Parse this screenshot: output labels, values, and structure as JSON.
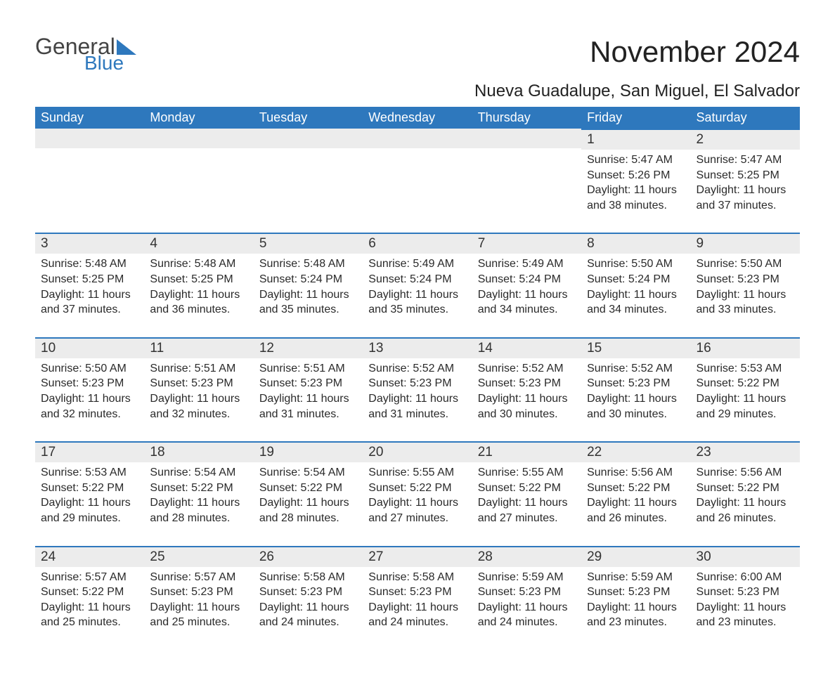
{
  "logo": {
    "word1": "General",
    "word2": "Blue"
  },
  "title": "November 2024",
  "location": "Nueva Guadalupe, San Miguel, El Salvador",
  "day_headers": [
    "Sunday",
    "Monday",
    "Tuesday",
    "Wednesday",
    "Thursday",
    "Friday",
    "Saturday"
  ],
  "colors": {
    "header_bg": "#2e78bd",
    "header_text": "#ffffff",
    "daynum_bg": "#ececec",
    "row_border": "#2e78bd",
    "body_text": "#2a2a2a",
    "logo_accent": "#2e78bd",
    "logo_text": "#444444",
    "page_bg": "#ffffff"
  },
  "fonts": {
    "title_size_pt": 32,
    "location_size_pt": 18,
    "header_size_pt": 14,
    "daynum_size_pt": 14,
    "body_size_pt": 12,
    "family": "Arial"
  },
  "layout": {
    "columns": 7,
    "rows": 5,
    "first_day_column_index": 5
  },
  "weeks": [
    [
      null,
      null,
      null,
      null,
      null,
      {
        "n": "1",
        "sunrise": "Sunrise: 5:47 AM",
        "sunset": "Sunset: 5:26 PM",
        "daylight": "Daylight: 11 hours and 38 minutes."
      },
      {
        "n": "2",
        "sunrise": "Sunrise: 5:47 AM",
        "sunset": "Sunset: 5:25 PM",
        "daylight": "Daylight: 11 hours and 37 minutes."
      }
    ],
    [
      {
        "n": "3",
        "sunrise": "Sunrise: 5:48 AM",
        "sunset": "Sunset: 5:25 PM",
        "daylight": "Daylight: 11 hours and 37 minutes."
      },
      {
        "n": "4",
        "sunrise": "Sunrise: 5:48 AM",
        "sunset": "Sunset: 5:25 PM",
        "daylight": "Daylight: 11 hours and 36 minutes."
      },
      {
        "n": "5",
        "sunrise": "Sunrise: 5:48 AM",
        "sunset": "Sunset: 5:24 PM",
        "daylight": "Daylight: 11 hours and 35 minutes."
      },
      {
        "n": "6",
        "sunrise": "Sunrise: 5:49 AM",
        "sunset": "Sunset: 5:24 PM",
        "daylight": "Daylight: 11 hours and 35 minutes."
      },
      {
        "n": "7",
        "sunrise": "Sunrise: 5:49 AM",
        "sunset": "Sunset: 5:24 PM",
        "daylight": "Daylight: 11 hours and 34 minutes."
      },
      {
        "n": "8",
        "sunrise": "Sunrise: 5:50 AM",
        "sunset": "Sunset: 5:24 PM",
        "daylight": "Daylight: 11 hours and 34 minutes."
      },
      {
        "n": "9",
        "sunrise": "Sunrise: 5:50 AM",
        "sunset": "Sunset: 5:23 PM",
        "daylight": "Daylight: 11 hours and 33 minutes."
      }
    ],
    [
      {
        "n": "10",
        "sunrise": "Sunrise: 5:50 AM",
        "sunset": "Sunset: 5:23 PM",
        "daylight": "Daylight: 11 hours and 32 minutes."
      },
      {
        "n": "11",
        "sunrise": "Sunrise: 5:51 AM",
        "sunset": "Sunset: 5:23 PM",
        "daylight": "Daylight: 11 hours and 32 minutes."
      },
      {
        "n": "12",
        "sunrise": "Sunrise: 5:51 AM",
        "sunset": "Sunset: 5:23 PM",
        "daylight": "Daylight: 11 hours and 31 minutes."
      },
      {
        "n": "13",
        "sunrise": "Sunrise: 5:52 AM",
        "sunset": "Sunset: 5:23 PM",
        "daylight": "Daylight: 11 hours and 31 minutes."
      },
      {
        "n": "14",
        "sunrise": "Sunrise: 5:52 AM",
        "sunset": "Sunset: 5:23 PM",
        "daylight": "Daylight: 11 hours and 30 minutes."
      },
      {
        "n": "15",
        "sunrise": "Sunrise: 5:52 AM",
        "sunset": "Sunset: 5:23 PM",
        "daylight": "Daylight: 11 hours and 30 minutes."
      },
      {
        "n": "16",
        "sunrise": "Sunrise: 5:53 AM",
        "sunset": "Sunset: 5:22 PM",
        "daylight": "Daylight: 11 hours and 29 minutes."
      }
    ],
    [
      {
        "n": "17",
        "sunrise": "Sunrise: 5:53 AM",
        "sunset": "Sunset: 5:22 PM",
        "daylight": "Daylight: 11 hours and 29 minutes."
      },
      {
        "n": "18",
        "sunrise": "Sunrise: 5:54 AM",
        "sunset": "Sunset: 5:22 PM",
        "daylight": "Daylight: 11 hours and 28 minutes."
      },
      {
        "n": "19",
        "sunrise": "Sunrise: 5:54 AM",
        "sunset": "Sunset: 5:22 PM",
        "daylight": "Daylight: 11 hours and 28 minutes."
      },
      {
        "n": "20",
        "sunrise": "Sunrise: 5:55 AM",
        "sunset": "Sunset: 5:22 PM",
        "daylight": "Daylight: 11 hours and 27 minutes."
      },
      {
        "n": "21",
        "sunrise": "Sunrise: 5:55 AM",
        "sunset": "Sunset: 5:22 PM",
        "daylight": "Daylight: 11 hours and 27 minutes."
      },
      {
        "n": "22",
        "sunrise": "Sunrise: 5:56 AM",
        "sunset": "Sunset: 5:22 PM",
        "daylight": "Daylight: 11 hours and 26 minutes."
      },
      {
        "n": "23",
        "sunrise": "Sunrise: 5:56 AM",
        "sunset": "Sunset: 5:22 PM",
        "daylight": "Daylight: 11 hours and 26 minutes."
      }
    ],
    [
      {
        "n": "24",
        "sunrise": "Sunrise: 5:57 AM",
        "sunset": "Sunset: 5:22 PM",
        "daylight": "Daylight: 11 hours and 25 minutes."
      },
      {
        "n": "25",
        "sunrise": "Sunrise: 5:57 AM",
        "sunset": "Sunset: 5:23 PM",
        "daylight": "Daylight: 11 hours and 25 minutes."
      },
      {
        "n": "26",
        "sunrise": "Sunrise: 5:58 AM",
        "sunset": "Sunset: 5:23 PM",
        "daylight": "Daylight: 11 hours and 24 minutes."
      },
      {
        "n": "27",
        "sunrise": "Sunrise: 5:58 AM",
        "sunset": "Sunset: 5:23 PM",
        "daylight": "Daylight: 11 hours and 24 minutes."
      },
      {
        "n": "28",
        "sunrise": "Sunrise: 5:59 AM",
        "sunset": "Sunset: 5:23 PM",
        "daylight": "Daylight: 11 hours and 24 minutes."
      },
      {
        "n": "29",
        "sunrise": "Sunrise: 5:59 AM",
        "sunset": "Sunset: 5:23 PM",
        "daylight": "Daylight: 11 hours and 23 minutes."
      },
      {
        "n": "30",
        "sunrise": "Sunrise: 6:00 AM",
        "sunset": "Sunset: 5:23 PM",
        "daylight": "Daylight: 11 hours and 23 minutes."
      }
    ]
  ]
}
